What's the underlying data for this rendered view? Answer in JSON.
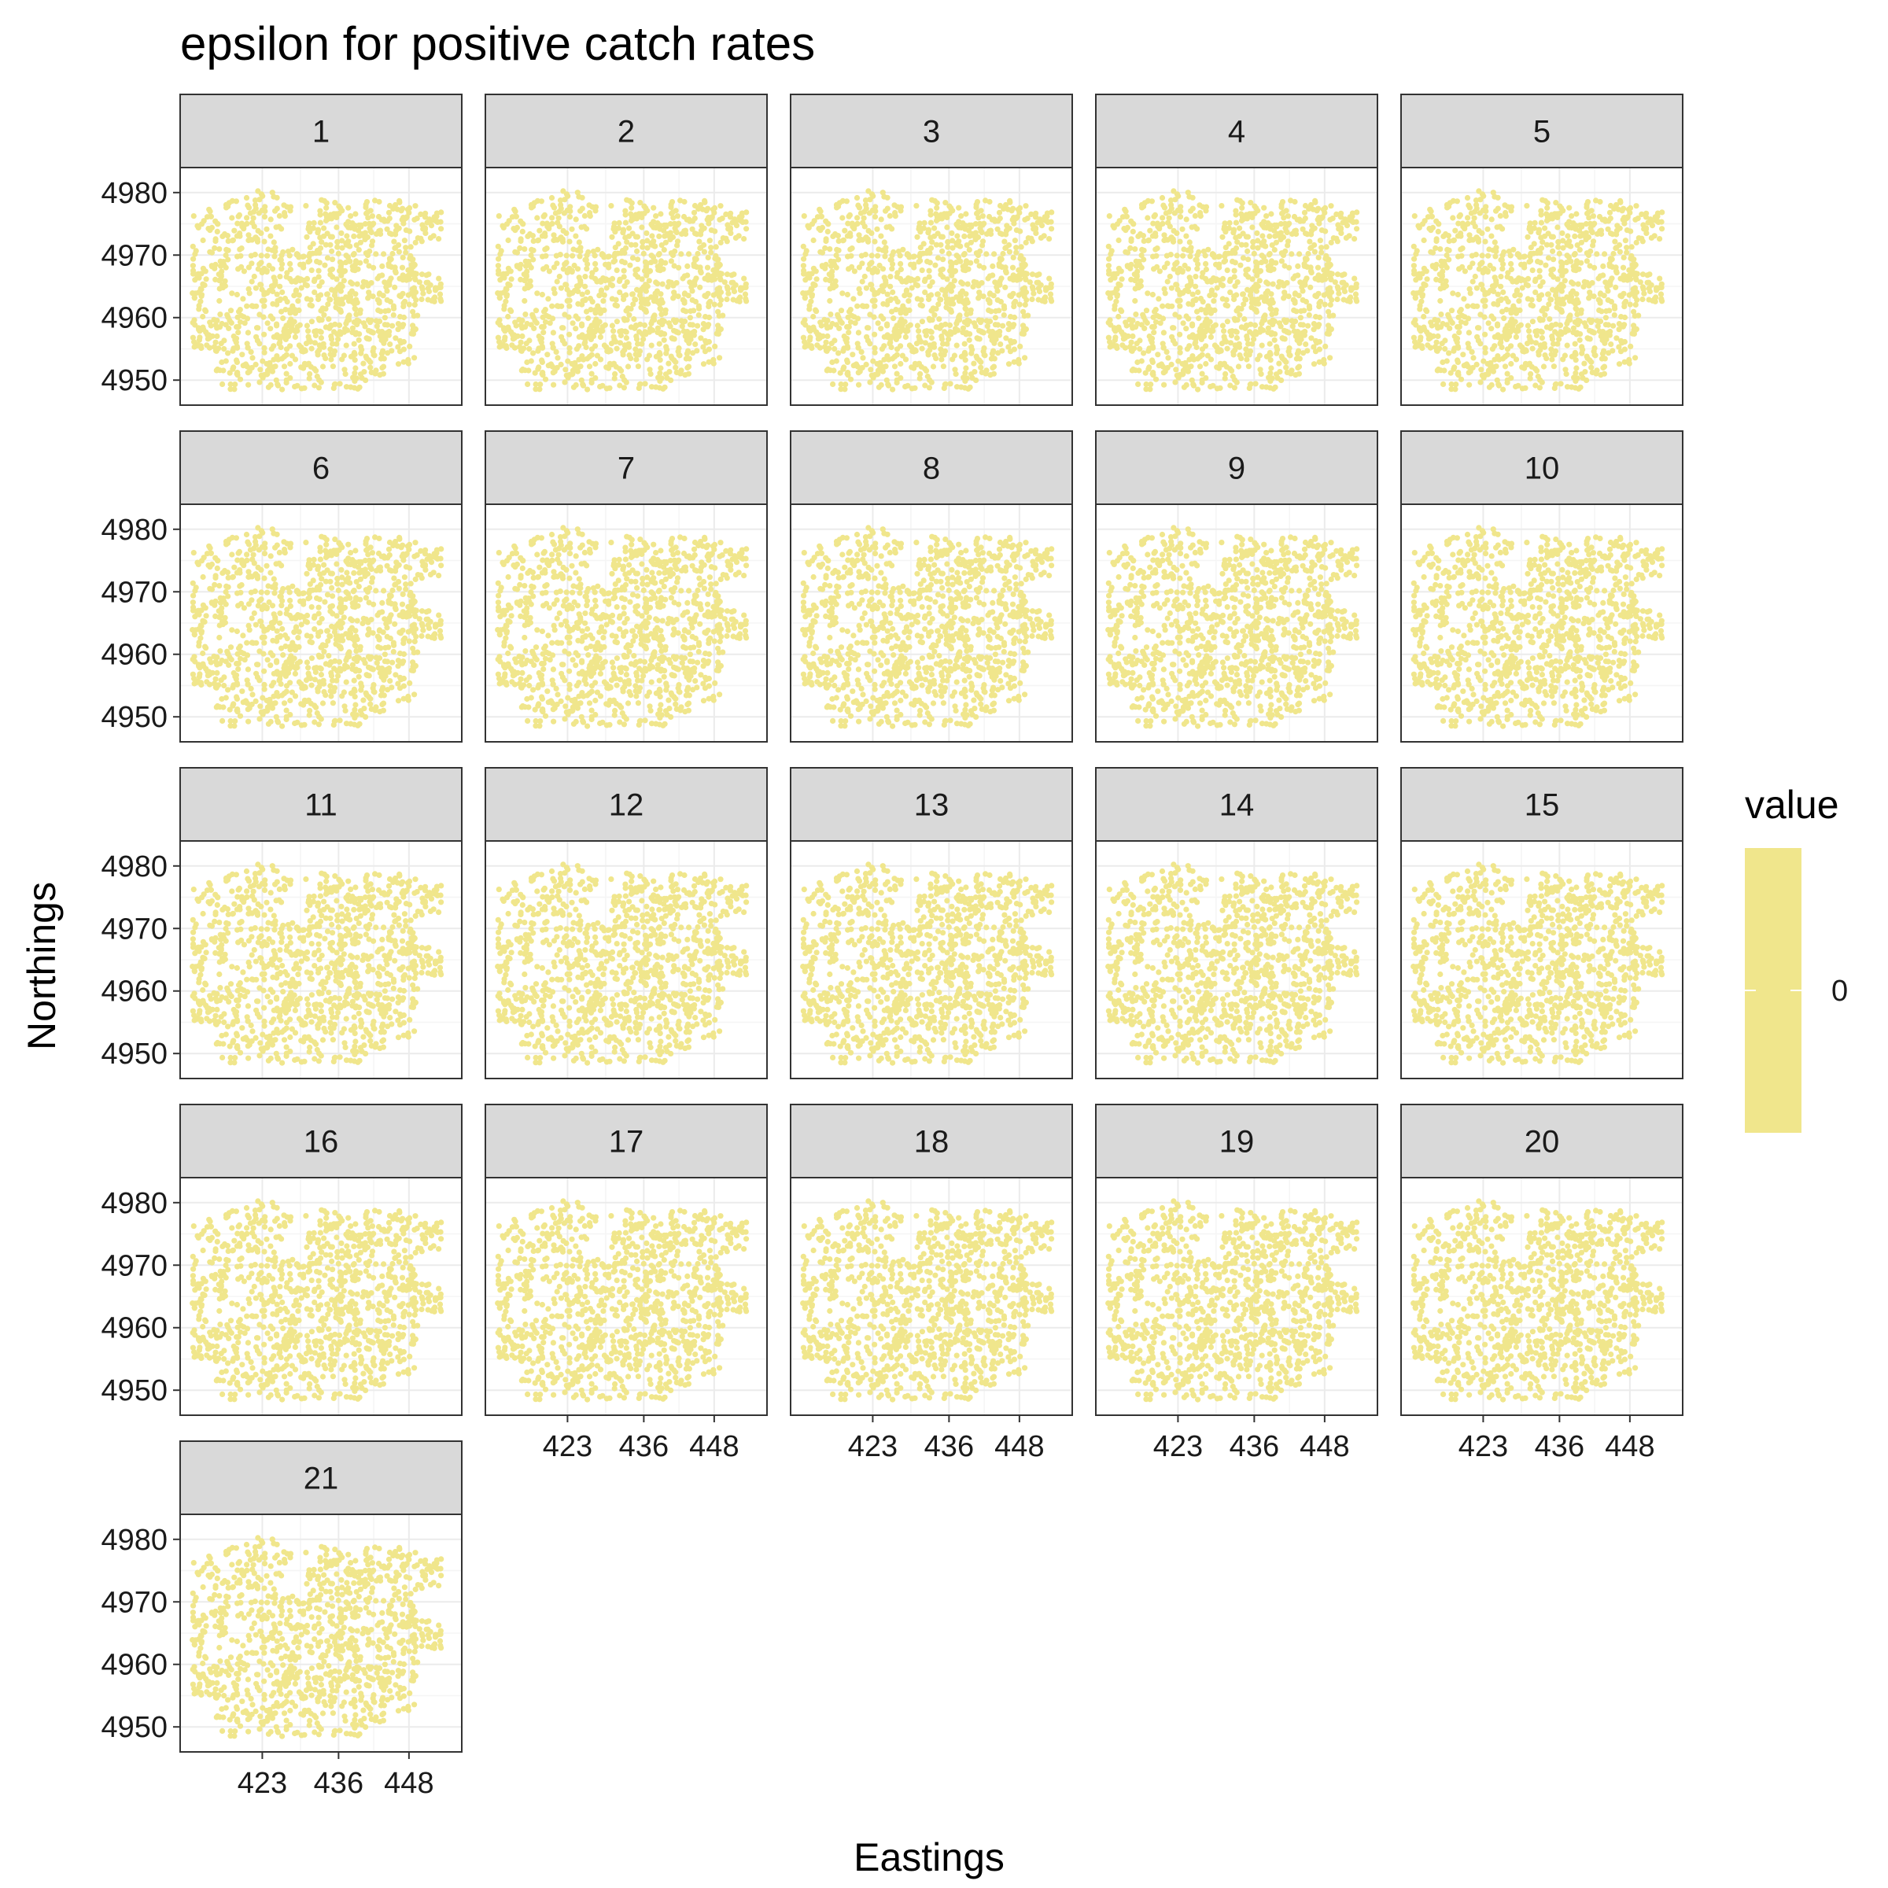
{
  "chart_data": {
    "type": "scatter",
    "title": "epsilon for positive catch rates",
    "xlabel": "Eastings",
    "ylabel": "Northings",
    "facets": [
      "1",
      "2",
      "3",
      "4",
      "5",
      "6",
      "7",
      "8",
      "9",
      "10",
      "11",
      "12",
      "13",
      "14",
      "15",
      "16",
      "17",
      "18",
      "19",
      "20",
      "21"
    ],
    "facet_columns": 5,
    "x_ticks": [
      423,
      436,
      448
    ],
    "y_ticks": [
      4950,
      4960,
      4970,
      4980
    ],
    "xlim": [
      409,
      457
    ],
    "ylim": [
      4946,
      4984
    ],
    "point_color": "#F0E68C",
    "grid": true,
    "legend": {
      "title": "value",
      "tick_labels": [
        "0"
      ],
      "colors": [
        "#F0E68C"
      ],
      "position": "right"
    },
    "series": [
      {
        "values_description": "",
        "uniform_value": 0
      }
    ]
  }
}
